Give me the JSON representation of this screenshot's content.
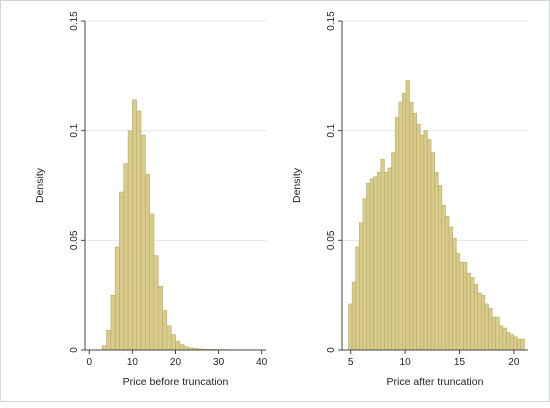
{
  "colors": {
    "bar_fill": "#d8cc8c",
    "bar_stroke": "#b9ab66",
    "grid": "#e4e4e4",
    "axis": "#444444",
    "panel_bg": "#ffffff"
  },
  "chart_data": [
    {
      "type": "bar",
      "subtype": "histogram",
      "title": "",
      "xlabel": "Price before truncation",
      "ylabel": "Density",
      "xlim": [
        -1,
        41
      ],
      "ylim": [
        0,
        0.15
      ],
      "xticks": [
        0,
        10,
        20,
        30,
        40
      ],
      "yticks": [
        0,
        0.05,
        0.1,
        0.15
      ],
      "ytick_labels": [
        "0",
        "0.05",
        "0.1",
        "0.15"
      ],
      "grid": true,
      "legend": "none",
      "bin_start": 3,
      "bin_width": 1,
      "values": [
        0.002,
        0.009,
        0.025,
        0.047,
        0.072,
        0.085,
        0.1,
        0.114,
        0.109,
        0.098,
        0.08,
        0.062,
        0.043,
        0.029,
        0.018,
        0.011,
        0.007,
        0.004,
        0.0025,
        0.0015,
        0.001,
        0.0007,
        0.0005,
        0.0004,
        0.0003,
        0.0003,
        0.0002,
        0.0002,
        0.0002,
        0.0001,
        0.0001,
        0.0001,
        0.0001,
        0.0001,
        0.0001,
        0.0001
      ]
    },
    {
      "type": "bar",
      "subtype": "histogram",
      "title": "",
      "xlabel": "Price after truncation",
      "ylabel": "Density",
      "xlim": [
        4.2,
        21.3
      ],
      "ylim": [
        0,
        0.15
      ],
      "xticks": [
        5,
        10,
        15,
        20
      ],
      "yticks": [
        0,
        0.05,
        0.1,
        0.15
      ],
      "ytick_labels": [
        "0",
        "0.05",
        "0.1",
        "0.15"
      ],
      "grid": true,
      "legend": "none",
      "bin_start": 4.8,
      "bin_width": 0.33,
      "values": [
        0.021,
        0.031,
        0.047,
        0.058,
        0.069,
        0.076,
        0.078,
        0.079,
        0.081,
        0.087,
        0.081,
        0.083,
        0.09,
        0.106,
        0.113,
        0.117,
        0.123,
        0.113,
        0.108,
        0.103,
        0.098,
        0.1,
        0.096,
        0.09,
        0.081,
        0.075,
        0.066,
        0.061,
        0.056,
        0.051,
        0.044,
        0.04,
        0.04,
        0.035,
        0.033,
        0.03,
        0.026,
        0.025,
        0.021,
        0.019,
        0.015,
        0.015,
        0.011,
        0.01,
        0.008,
        0.007,
        0.006,
        0.005,
        0.005
      ]
    }
  ]
}
